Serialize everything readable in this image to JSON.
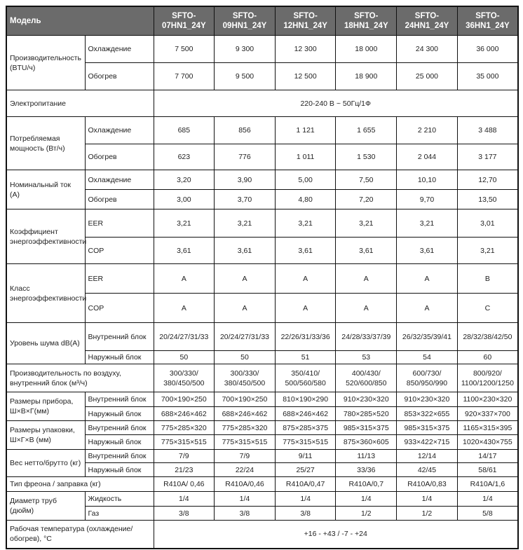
{
  "header": {
    "label": "Модель",
    "models": [
      [
        "SFTO-",
        "07HN1_24Y"
      ],
      [
        "SFTO-",
        "09HN1_24Y"
      ],
      [
        "SFTO-",
        "12HN1_24Y"
      ],
      [
        "SFTO-",
        "18HN1_24Y"
      ],
      [
        "SFTO-",
        "24HN1_24Y"
      ],
      [
        "SFTO-",
        "36HN1_24Y"
      ]
    ]
  },
  "groups": [
    {
      "label": "Производительность (BTU/ч)",
      "rows": [
        {
          "sub": "Охлаждение",
          "values": [
            "7 500",
            "9 300",
            "12 300",
            "18 000",
            "24 300",
            "36 000"
          ]
        },
        {
          "sub": "Обогрев",
          "values": [
            "7 700",
            "9 500",
            "12 500",
            "18 900",
            "25 000",
            "35 000"
          ]
        }
      ]
    },
    {
      "label": "Электропитание",
      "span": "220-240 В ~ 50Гц/1Ф"
    },
    {
      "label": "Потребляемая мощность (Вт/ч)",
      "rows": [
        {
          "sub": "Охлаждение",
          "values": [
            "685",
            "856",
            "1 121",
            "1 655",
            "2 210",
            "3 488"
          ]
        },
        {
          "sub": "Обогрев",
          "values": [
            "623",
            "776",
            "1 011",
            "1 530",
            "2 044",
            "3 177"
          ]
        }
      ]
    },
    {
      "label": "Номинальный ток (А)",
      "rows": [
        {
          "sub": "Охлаждение",
          "values": [
            "3,20",
            "3,90",
            "5,00",
            "7,50",
            "10,10",
            "12,70"
          ]
        },
        {
          "sub": "Обогрев",
          "values": [
            "3,00",
            "3,70",
            "4,80",
            "7,20",
            "9,70",
            "13,50"
          ]
        }
      ]
    },
    {
      "label": "Коэффициент энергоэффективности",
      "rows": [
        {
          "sub": "EER",
          "values": [
            "3,21",
            "3,21",
            "3,21",
            "3,21",
            "3,21",
            "3,01"
          ]
        },
        {
          "sub": "COP",
          "values": [
            "3,61",
            "3,61",
            "3,61",
            "3,61",
            "3,61",
            "3,21"
          ]
        }
      ]
    },
    {
      "label": "Класс энергоэффективности",
      "rows": [
        {
          "sub": "EER",
          "values": [
            "A",
            "A",
            "A",
            "A",
            "A",
            "B"
          ]
        },
        {
          "sub": "COP",
          "values": [
            "A",
            "A",
            "A",
            "A",
            "A",
            "C"
          ]
        }
      ]
    },
    {
      "label": "Уровень шума dB(A)",
      "rows": [
        {
          "sub": "Внутренний блок",
          "values": [
            "20/24/27/31/33",
            "20/24/27/31/33",
            "22/26/31/33/36",
            "24/28/33/37/39",
            "26/32/35/39/41",
            "28/32/38/42/50"
          ]
        },
        {
          "sub": "Наружный блок",
          "values": [
            "50",
            "50",
            "51",
            "53",
            "54",
            "60"
          ]
        }
      ]
    },
    {
      "label": "Производительность по воздуху, внутренний блок (м³/ч)",
      "values": [
        "300/330/ 380/450/500",
        "300/330/ 380/450/500",
        "350/410/ 500/560/580",
        "400/430/ 520/600/850",
        "600/730/ 850/950/990",
        "800/920/ 1100/1200/1250"
      ]
    },
    {
      "label": "Размеры прибора, Ш×В×Г(мм)",
      "rows": [
        {
          "sub": "Внутренний блок",
          "values": [
            "700×190×250",
            "700×190×250",
            "810×190×290",
            "910×230×320",
            "910×230×320",
            "1100×230×320"
          ]
        },
        {
          "sub": "Наружный блок",
          "values": [
            "688×246×462",
            "688×246×462",
            "688×246×462",
            "780×285×520",
            "853×322×655",
            "920×337×700"
          ]
        }
      ]
    },
    {
      "label": "Размеры упаковки, Ш×Г×В (мм)",
      "rows": [
        {
          "sub": "Внутренний блок",
          "values": [
            "775×285×320",
            "775×285×320",
            "875×285×375",
            "985×315×375",
            "985×315×375",
            "1165×315×395"
          ]
        },
        {
          "sub": "Наружный блок",
          "values": [
            "775×315×515",
            "775×315×515",
            "775×315×515",
            "875×360×605",
            "933×422×715",
            "1020×430×755"
          ]
        }
      ]
    },
    {
      "label": "Вес нетто/брутто (кг)",
      "rows": [
        {
          "sub": "Внутренний блок",
          "values": [
            "7/9",
            "7/9",
            "9/11",
            "11/13",
            "12/14",
            "14/17"
          ]
        },
        {
          "sub": "Наружный блок",
          "values": [
            "21/23",
            "22/24",
            "25/27",
            "33/36",
            "42/45",
            "58/61"
          ]
        }
      ]
    },
    {
      "label": "Тип фреона / заправка (кг)",
      "values": [
        "R410A/ 0,46",
        "R410A/0,46",
        "R410A/0,47",
        "R410A/0,7",
        "R410A/0,83",
        "R410A/1,6"
      ]
    },
    {
      "label": "Диаметр труб (дюйм)",
      "rows": [
        {
          "sub": "Жидкость",
          "values": [
            "1/4",
            "1/4",
            "1/4",
            "1/4",
            "1/4",
            "1/4"
          ]
        },
        {
          "sub": "Газ",
          "values": [
            "3/8",
            "3/8",
            "3/8",
            "1/2",
            "1/2",
            "5/8"
          ]
        }
      ]
    },
    {
      "label": "Рабочая температура (охлаждение/ обогрев), °С",
      "span": "+16 - +43 / -7 - +24"
    }
  ]
}
